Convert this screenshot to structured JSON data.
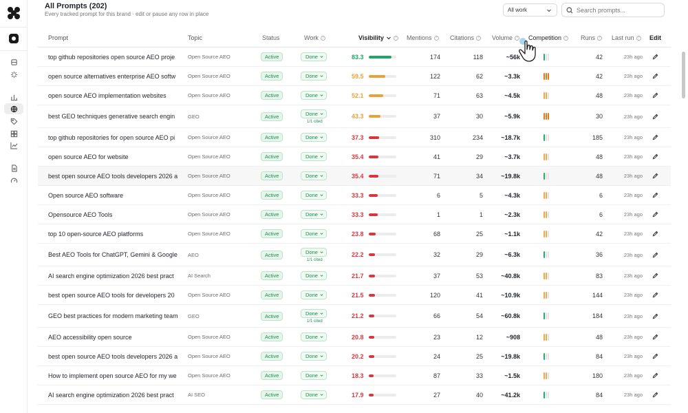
{
  "sidebar": {
    "icons": [
      "app-logo-icon",
      "brand-icon",
      "prompts-icon",
      "sparkle-icon",
      "analytics-icon",
      "globe-icon",
      "tag-icon",
      "compare-icon",
      "trend-icon",
      "document-icon",
      "gauge-icon"
    ]
  },
  "header": {
    "title": "All Prompts (202)",
    "subtitle": "Every tracked prompt for this brand · edit or pause any row in place"
  },
  "filter": {
    "selected": "All work"
  },
  "search": {
    "placeholder": "Search prompts..."
  },
  "columns": {
    "prompt": "Prompt",
    "topic": "Topic",
    "status": "Status",
    "work": "Work",
    "visibility": "Visibility",
    "mentions": "Mentions",
    "citations": "Citations",
    "volume": "Volume",
    "competition": "Competition",
    "runs": "Runs",
    "last_run": "Last run",
    "edit": "Edit"
  },
  "colors": {
    "green": "#1fa765",
    "orange": "#e8a23a",
    "red": "#d9363e",
    "comp_low": "#21b063",
    "comp_mid": "#f0a64a",
    "comp_high": "#e2791f",
    "comp_empty": "#e4e4e4"
  },
  "rows": [
    {
      "prompt": "top github repositories open source AEO proje",
      "topic": "Open Source AEO",
      "status": "Active",
      "work": "Done",
      "cited": "",
      "visibility": "83.3",
      "vis_value": 83.3,
      "vis_color": "green",
      "mentions": "174",
      "citations": "118",
      "volume": "~56k",
      "competition": 1,
      "runs": "42",
      "last_run": "23h ago"
    },
    {
      "prompt": "open source alternatives enterprise AEO softw",
      "topic": "Open Source AEO",
      "status": "Active",
      "work": "Done",
      "cited": "",
      "visibility": "59.5",
      "vis_value": 59.5,
      "vis_color": "orange",
      "mentions": "122",
      "citations": "62",
      "volume": "~3.3k",
      "competition": 3,
      "runs": "42",
      "last_run": "23h ago"
    },
    {
      "prompt": "open source AEO implementation websites",
      "topic": "Open Source AEO",
      "status": "Active",
      "work": "Done",
      "cited": "",
      "visibility": "52.1",
      "vis_value": 52.1,
      "vis_color": "orange",
      "mentions": "71",
      "citations": "63",
      "volume": "~4.5k",
      "competition": 2,
      "runs": "48",
      "last_run": "23h ago"
    },
    {
      "prompt": "best GEO techniques generative search engin",
      "topic": "GEO",
      "status": "Active",
      "work": "Done",
      "cited": "1/1 cited",
      "visibility": "43.3",
      "vis_value": 43.3,
      "vis_color": "orange",
      "mentions": "37",
      "citations": "30",
      "volume": "~5.9k",
      "competition": 3,
      "runs": "30",
      "last_run": "23h ago"
    },
    {
      "prompt": "top github repositories for open source AEO pi",
      "topic": "Open Source AEO",
      "status": "Active",
      "work": "Done",
      "cited": "",
      "visibility": "37.3",
      "vis_value": 37.3,
      "vis_color": "red",
      "mentions": "310",
      "citations": "234",
      "volume": "~18.7k",
      "competition": 1,
      "runs": "185",
      "last_run": "23h ago"
    },
    {
      "prompt": "open source AEO for website",
      "topic": "Open Source AEO",
      "status": "Active",
      "work": "Done",
      "cited": "",
      "visibility": "35.4",
      "vis_value": 35.4,
      "vis_color": "red",
      "mentions": "41",
      "citations": "29",
      "volume": "~3.7k",
      "competition": 2,
      "runs": "48",
      "last_run": "23h ago"
    },
    {
      "prompt": "best open source AEO tools developers 2026 a",
      "topic": "Open Source AEO",
      "status": "Active",
      "work": "Done",
      "cited": "",
      "visibility": "35.4",
      "vis_value": 35.4,
      "vis_color": "red",
      "mentions": "71",
      "citations": "34",
      "volume": "~19.8k",
      "competition": 1,
      "runs": "48",
      "last_run": "23h ago"
    },
    {
      "prompt": "Open source AEO software",
      "topic": "Open Source AEO",
      "status": "Active",
      "work": "Done",
      "cited": "",
      "visibility": "33.3",
      "vis_value": 33.3,
      "vis_color": "red",
      "mentions": "6",
      "citations": "5",
      "volume": "~4.3k",
      "competition": 2,
      "runs": "6",
      "last_run": "23h ago"
    },
    {
      "prompt": "Opensource AEO Tools",
      "topic": "Open Source AEO",
      "status": "Active",
      "work": "Done",
      "cited": "",
      "visibility": "33.3",
      "vis_value": 33.3,
      "vis_color": "red",
      "mentions": "1",
      "citations": "1",
      "volume": "~2.3k",
      "competition": 2,
      "runs": "6",
      "last_run": "23h ago"
    },
    {
      "prompt": "top 10 open-source AEO platforms",
      "topic": "Open Source AEO",
      "status": "Active",
      "work": "Done",
      "cited": "",
      "visibility": "23.8",
      "vis_value": 23.8,
      "vis_color": "red",
      "mentions": "68",
      "citations": "25",
      "volume": "~1.1k",
      "competition": 2,
      "runs": "42",
      "last_run": "23h ago"
    },
    {
      "prompt": "Best AEO Tools for ChatGPT, Gemini & Google",
      "topic": "AEO",
      "status": "Active",
      "work": "Done",
      "cited": "1/1 cited",
      "visibility": "22.2",
      "vis_value": 22.2,
      "vis_color": "red",
      "mentions": "32",
      "citations": "29",
      "volume": "~6.3k",
      "competition": 1,
      "runs": "36",
      "last_run": "23h ago"
    },
    {
      "prompt": "AI search engine optimization 2026 best pract",
      "topic": "AI Search",
      "status": "Active",
      "work": "Done",
      "cited": "",
      "visibility": "21.7",
      "vis_value": 21.7,
      "vis_color": "red",
      "mentions": "37",
      "citations": "53",
      "volume": "~40.8k",
      "competition": 2,
      "runs": "83",
      "last_run": "23h ago"
    },
    {
      "prompt": "best open source AEO tools for developers 20",
      "topic": "Open Source AEO",
      "status": "Active",
      "work": "Done",
      "cited": "",
      "visibility": "21.5",
      "vis_value": 21.5,
      "vis_color": "red",
      "mentions": "120",
      "citations": "41",
      "volume": "~10.9k",
      "competition": 2,
      "runs": "144",
      "last_run": "23h ago"
    },
    {
      "prompt": "GEO best practices for modern marketing team",
      "topic": "GEO",
      "status": "Active",
      "work": "Done",
      "cited": "1/1 cited",
      "visibility": "21.2",
      "vis_value": 21.2,
      "vis_color": "red",
      "mentions": "66",
      "citations": "54",
      "volume": "~60.8k",
      "competition": 1,
      "runs": "184",
      "last_run": "23h ago"
    },
    {
      "prompt": "AEO accessibility open source",
      "topic": "Open Source AEO",
      "status": "Active",
      "work": "Done",
      "cited": "",
      "visibility": "20.8",
      "vis_value": 20.8,
      "vis_color": "red",
      "mentions": "23",
      "citations": "12",
      "volume": "~908",
      "competition": 2,
      "runs": "48",
      "last_run": "23h ago"
    },
    {
      "prompt": "best open source AEO tools developers 2026 a",
      "topic": "Open Source AEO",
      "status": "Active",
      "work": "Done",
      "cited": "",
      "visibility": "20.2",
      "vis_value": 20.2,
      "vis_color": "red",
      "mentions": "24",
      "citations": "25",
      "volume": "~19.8k",
      "competition": 1,
      "runs": "84",
      "last_run": "23h ago"
    },
    {
      "prompt": "How to implement open source AEO for my we",
      "topic": "Open Source AEO",
      "status": "Active",
      "work": "Done",
      "cited": "",
      "visibility": "18.3",
      "vis_value": 18.3,
      "vis_color": "red",
      "mentions": "87",
      "citations": "33",
      "volume": "~1.5k",
      "competition": 2,
      "runs": "180",
      "last_run": "23h ago"
    },
    {
      "prompt": "AI search engine optimization 2026 best pract",
      "topic": "AI SEO",
      "status": "Active",
      "work": "Done",
      "cited": "",
      "visibility": "17.9",
      "vis_value": 17.9,
      "vis_color": "red",
      "mentions": "27",
      "citations": "40",
      "volume": "~41.2k",
      "competition": 1,
      "runs": "84",
      "last_run": "23h ago"
    }
  ]
}
